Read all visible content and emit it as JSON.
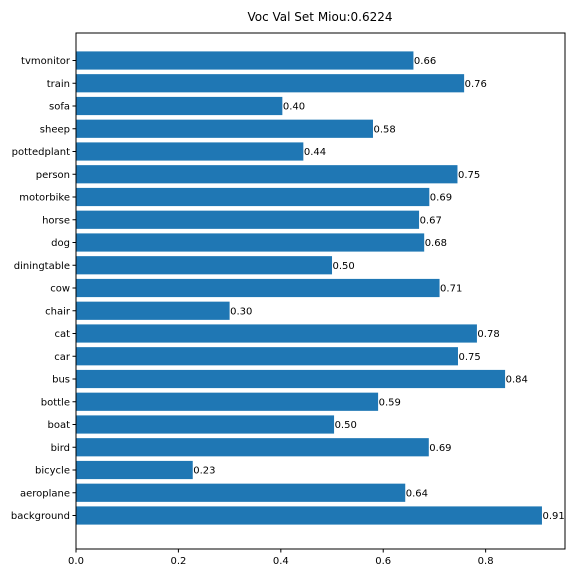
{
  "chart_data": {
    "type": "bar",
    "orientation": "horizontal",
    "title": "Voc Val Set Miou:0.6224",
    "xlabel": "",
    "ylabel": "",
    "xlim": [
      0,
      0.955
    ],
    "x_ticks": [
      0.0,
      0.2,
      0.4,
      0.6,
      0.8
    ],
    "x_tick_labels": [
      "0.0",
      "0.2",
      "0.4",
      "0.6",
      "0.8"
    ],
    "grid": false,
    "bar_color": "#1f77b4",
    "categories": [
      "background",
      "aeroplane",
      "bicycle",
      "bird",
      "boat",
      "bottle",
      "bus",
      "car",
      "cat",
      "chair",
      "cow",
      "diningtable",
      "dog",
      "horse",
      "motorbike",
      "person",
      "pottedplant",
      "sheep",
      "sofa",
      "train",
      "tvmonitor"
    ],
    "values": [
      0.91,
      0.643,
      0.228,
      0.689,
      0.504,
      0.59,
      0.838,
      0.746,
      0.783,
      0.3,
      0.71,
      0.5,
      0.68,
      0.67,
      0.69,
      0.745,
      0.444,
      0.58,
      0.403,
      0.758,
      0.659
    ],
    "value_labels": [
      "0.91",
      "0.64",
      "0.23",
      "0.69",
      "0.50",
      "0.59",
      "0.84",
      "0.75",
      "0.78",
      "0.30",
      "0.71",
      "0.50",
      "0.68",
      "0.67",
      "0.69",
      "0.75",
      "0.44",
      "0.58",
      "0.40",
      "0.76",
      "0.66"
    ]
  }
}
